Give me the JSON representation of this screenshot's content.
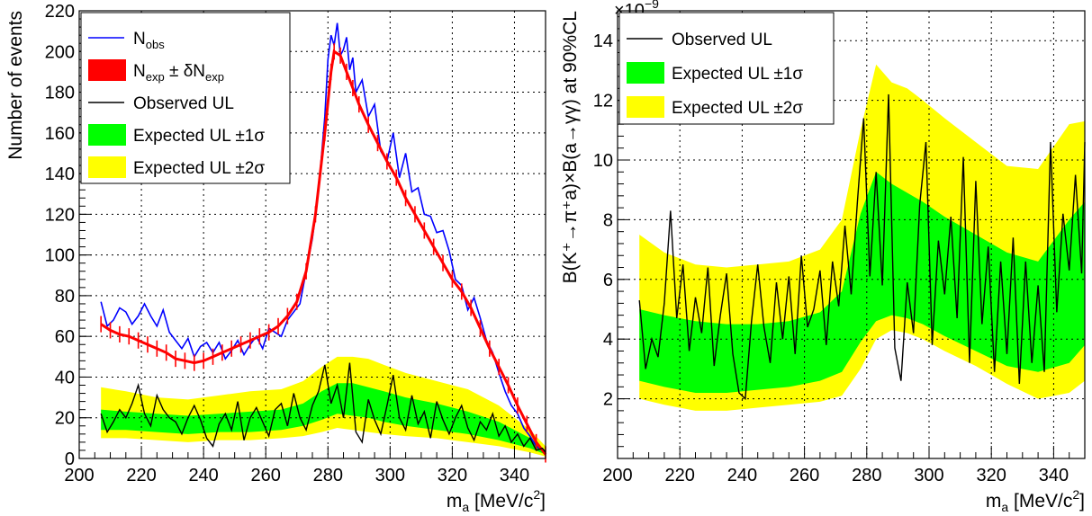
{
  "chart_data": [
    {
      "type": "line",
      "title": "",
      "xlabel": "m",
      "xlabel_sub": "a",
      "xlabel_unit": " [MeV/c",
      "xlabel_unit_sup": "2",
      "xlabel_close": "]",
      "ylabel": "Number of events",
      "xlim": [
        200,
        350
      ],
      "ylim": [
        0,
        220
      ],
      "xticks": [
        200,
        220,
        240,
        260,
        280,
        300,
        320,
        340
      ],
      "yticks": [
        0,
        20,
        40,
        60,
        80,
        100,
        120,
        140,
        160,
        180,
        200,
        220
      ],
      "grid": true,
      "legend_position": "top-left",
      "legend": [
        {
          "key": "nobs",
          "label": "N",
          "sub": "obs",
          "color": "#0000ff",
          "style": "line"
        },
        {
          "key": "nexp",
          "label": "N",
          "sub": "exp",
          "mid": " ± δN",
          "sub2": "exp",
          "color": "#ff0000",
          "style": "fill"
        },
        {
          "key": "obs_ul",
          "label": "Observed UL",
          "color": "#000000",
          "style": "line"
        },
        {
          "key": "band1",
          "label": "Expected UL ±1σ",
          "color": "#00ff00",
          "style": "fill"
        },
        {
          "key": "band2",
          "label": "Expected UL ±2σ",
          "color": "#ffff00",
          "style": "fill"
        }
      ],
      "series": [
        {
          "name": "N_obs",
          "x": [
            207,
            209,
            211,
            213,
            215,
            217,
            219,
            221,
            223,
            225,
            227,
            229,
            231,
            233,
            235,
            237,
            239,
            241,
            243,
            245,
            247,
            249,
            251,
            253,
            255,
            257,
            259,
            261,
            263,
            265,
            267,
            269,
            271,
            273,
            275,
            277,
            279,
            280,
            281,
            282,
            283,
            284,
            285,
            286,
            287,
            288,
            289,
            291,
            293,
            295,
            297,
            299,
            301,
            303,
            305,
            307,
            309,
            311,
            313,
            315,
            317,
            319,
            321,
            323,
            325,
            327,
            329,
            331,
            333,
            335,
            337,
            339,
            341,
            343,
            345,
            347,
            349,
            350
          ],
          "y": [
            77,
            65,
            68,
            74,
            72,
            66,
            70,
            76,
            70,
            65,
            73,
            62,
            58,
            54,
            59,
            50,
            55,
            57,
            52,
            57,
            49,
            53,
            58,
            51,
            56,
            60,
            54,
            64,
            62,
            60,
            68,
            72,
            76,
            92,
            108,
            132,
            168,
            196,
            208,
            203,
            214,
            198,
            201,
            207,
            191,
            197,
            180,
            186,
            168,
            174,
            151,
            146,
            160,
            138,
            150,
            131,
            133,
            120,
            119,
            111,
            112,
            102,
            88,
            85,
            73,
            79,
            69,
            58,
            52,
            42,
            33,
            26,
            22,
            15,
            11,
            6,
            4,
            3
          ]
        },
        {
          "name": "N_exp",
          "x": [
            207,
            210,
            213,
            216,
            219,
            222,
            225,
            228,
            231,
            234,
            237,
            240,
            243,
            246,
            249,
            252,
            255,
            258,
            261,
            264,
            267,
            270,
            273,
            276,
            279,
            281,
            282,
            284,
            286,
            288,
            290,
            293,
            296,
            299,
            302,
            305,
            308,
            311,
            314,
            317,
            320,
            323,
            326,
            329,
            332,
            335,
            338,
            341,
            344,
            347,
            350
          ],
          "y": [
            66,
            63,
            61,
            60,
            58,
            56,
            54,
            52,
            49,
            48,
            47,
            48,
            50,
            52,
            54,
            56,
            58,
            60,
            62,
            65,
            70,
            77,
            92,
            120,
            160,
            190,
            200,
            198,
            190,
            182,
            174,
            164,
            155,
            146,
            138,
            128,
            120,
            112,
            104,
            96,
            88,
            82,
            74,
            64,
            54,
            45,
            36,
            26,
            17,
            8,
            2
          ],
          "err": 4
        },
        {
          "name": "Observed UL",
          "x": [
            207,
            209,
            211,
            213,
            215,
            217,
            219,
            221,
            223,
            225,
            227,
            229,
            231,
            233,
            235,
            237,
            239,
            241,
            243,
            245,
            247,
            249,
            251,
            253,
            255,
            257,
            259,
            261,
            263,
            265,
            267,
            269,
            271,
            273,
            275,
            277,
            279,
            281,
            283,
            285,
            287,
            289,
            291,
            293,
            295,
            297,
            299,
            301,
            303,
            305,
            307,
            309,
            311,
            313,
            315,
            317,
            319,
            321,
            323,
            325,
            327,
            329,
            331,
            333,
            335,
            337,
            339,
            341,
            343,
            345,
            347,
            349,
            350
          ],
          "y": [
            22,
            13,
            18,
            24,
            20,
            27,
            36,
            22,
            16,
            31,
            24,
            20,
            18,
            12,
            20,
            26,
            19,
            10,
            6,
            17,
            22,
            14,
            28,
            9,
            20,
            25,
            18,
            11,
            24,
            27,
            16,
            32,
            20,
            14,
            26,
            33,
            46,
            27,
            36,
            20,
            47,
            13,
            8,
            29,
            19,
            12,
            26,
            41,
            20,
            14,
            31,
            17,
            23,
            10,
            28,
            19,
            12,
            20,
            26,
            15,
            9,
            18,
            14,
            22,
            11,
            16,
            8,
            12,
            6,
            10,
            4,
            5,
            3
          ]
        }
      ],
      "bands": [
        {
          "name": "±2σ",
          "x": [
            207,
            215,
            225,
            235,
            245,
            255,
            265,
            272,
            278,
            283,
            288,
            293,
            298,
            305,
            315,
            325,
            335,
            345,
            350
          ],
          "lo": [
            10,
            10,
            9,
            8,
            9,
            9,
            10,
            11,
            13,
            15,
            14,
            13,
            12,
            11,
            10,
            8,
            6,
            3,
            1
          ],
          "hi": [
            35,
            33,
            30,
            29,
            31,
            33,
            34,
            38,
            45,
            50,
            50,
            49,
            46,
            42,
            38,
            34,
            26,
            14,
            6
          ]
        },
        {
          "name": "±1σ",
          "x": [
            207,
            215,
            225,
            235,
            245,
            255,
            265,
            272,
            278,
            283,
            288,
            293,
            298,
            305,
            315,
            325,
            335,
            345,
            350
          ],
          "lo": [
            14,
            14,
            13,
            12,
            13,
            13,
            14,
            16,
            19,
            22,
            21,
            20,
            18,
            16,
            14,
            12,
            9,
            5,
            2
          ],
          "hi": [
            24,
            23,
            22,
            21,
            22,
            23,
            24,
            27,
            33,
            37,
            37,
            35,
            33,
            30,
            27,
            23,
            18,
            10,
            4
          ]
        }
      ]
    },
    {
      "type": "line",
      "title": "",
      "xlabel": "m",
      "xlabel_sub": "a",
      "xlabel_unit": " [MeV/c",
      "xlabel_unit_sup": "2",
      "xlabel_close": "]",
      "ylabel": "B(K⁺→π⁺a)×B(a→γγ) at 90%CL",
      "y_multiplier": "×10",
      "y_multiplier_exp": "−9",
      "xlim": [
        200,
        350
      ],
      "ylim": [
        0,
        15
      ],
      "xticks": [
        200,
        220,
        240,
        260,
        280,
        300,
        320,
        340
      ],
      "yticks": [
        2,
        4,
        6,
        8,
        10,
        12,
        14
      ],
      "grid": true,
      "legend_position": "top-left",
      "legend": [
        {
          "key": "obs_ul",
          "label": "Observed UL",
          "color": "#000000",
          "style": "line"
        },
        {
          "key": "band1",
          "label": "Expected UL ±1σ",
          "color": "#00ff00",
          "style": "fill"
        },
        {
          "key": "band2",
          "label": "Expected UL ±2σ",
          "color": "#ffff00",
          "style": "fill"
        }
      ],
      "series": [
        {
          "name": "Observed UL",
          "x": [
            207,
            209,
            211,
            213,
            215,
            217,
            219,
            221,
            223,
            225,
            227,
            229,
            231,
            233,
            235,
            237,
            239,
            241,
            243,
            245,
            247,
            249,
            251,
            253,
            255,
            257,
            259,
            261,
            263,
            265,
            267,
            269,
            271,
            273,
            275,
            277,
            279,
            281,
            283,
            285,
            287,
            289,
            291,
            293,
            295,
            297,
            299,
            301,
            303,
            305,
            307,
            309,
            311,
            313,
            315,
            317,
            319,
            321,
            323,
            325,
            327,
            329,
            331,
            333,
            335,
            337,
            339,
            341,
            343,
            345,
            347,
            349,
            350
          ],
          "y": [
            5.3,
            3.0,
            4.0,
            3.4,
            5.2,
            8.3,
            4.7,
            6.5,
            3.6,
            5.4,
            4.2,
            6.4,
            3.1,
            4.8,
            6.2,
            3.5,
            2.2,
            2.0,
            4.6,
            6.5,
            4.4,
            3.2,
            5.9,
            4.0,
            6.1,
            3.5,
            6.8,
            4.4,
            5.0,
            6.3,
            3.8,
            6.6,
            5.1,
            7.8,
            5.5,
            8.6,
            11.4,
            6.1,
            9.6,
            5.8,
            12.2,
            3.7,
            2.6,
            5.9,
            4.2,
            8.5,
            10.6,
            3.8,
            7.3,
            5.5,
            8.1,
            4.7,
            10.1,
            3.2,
            9.3,
            4.5,
            7.1,
            2.9,
            6.6,
            3.5,
            7.4,
            2.5,
            6.6,
            3.2,
            5.8,
            2.9,
            10.6,
            4.9,
            8.2,
            6.3,
            9.5,
            6.2,
            10.6
          ]
        }
      ],
      "bands": [
        {
          "name": "±2σ",
          "x": [
            207,
            215,
            225,
            235,
            245,
            255,
            265,
            272,
            278,
            283,
            288,
            293,
            298,
            305,
            315,
            325,
            335,
            345,
            350
          ],
          "lo": [
            2.0,
            1.8,
            1.6,
            1.6,
            1.7,
            1.8,
            1.9,
            2.1,
            3.0,
            4.0,
            4.3,
            4.2,
            4.0,
            3.6,
            3.1,
            2.5,
            2.0,
            2.2,
            2.6
          ],
          "hi": [
            7.5,
            6.9,
            6.5,
            6.4,
            6.5,
            6.6,
            7.0,
            8.0,
            11.0,
            13.2,
            12.6,
            12.4,
            12.0,
            11.4,
            10.6,
            9.8,
            9.7,
            11.2,
            11.3
          ]
        },
        {
          "name": "±1σ",
          "x": [
            207,
            215,
            225,
            235,
            245,
            255,
            265,
            272,
            278,
            283,
            288,
            293,
            298,
            305,
            315,
            325,
            335,
            345,
            350
          ],
          "lo": [
            2.6,
            2.4,
            2.2,
            2.2,
            2.3,
            2.4,
            2.6,
            2.9,
            3.9,
            4.6,
            4.8,
            4.7,
            4.5,
            4.1,
            3.6,
            3.1,
            2.9,
            3.2,
            3.8
          ],
          "hi": [
            5.0,
            4.8,
            4.6,
            4.5,
            4.5,
            4.6,
            4.9,
            5.6,
            8.2,
            9.6,
            9.2,
            8.9,
            8.6,
            8.1,
            7.5,
            6.9,
            6.6,
            8.0,
            8.6
          ]
        }
      ]
    }
  ]
}
